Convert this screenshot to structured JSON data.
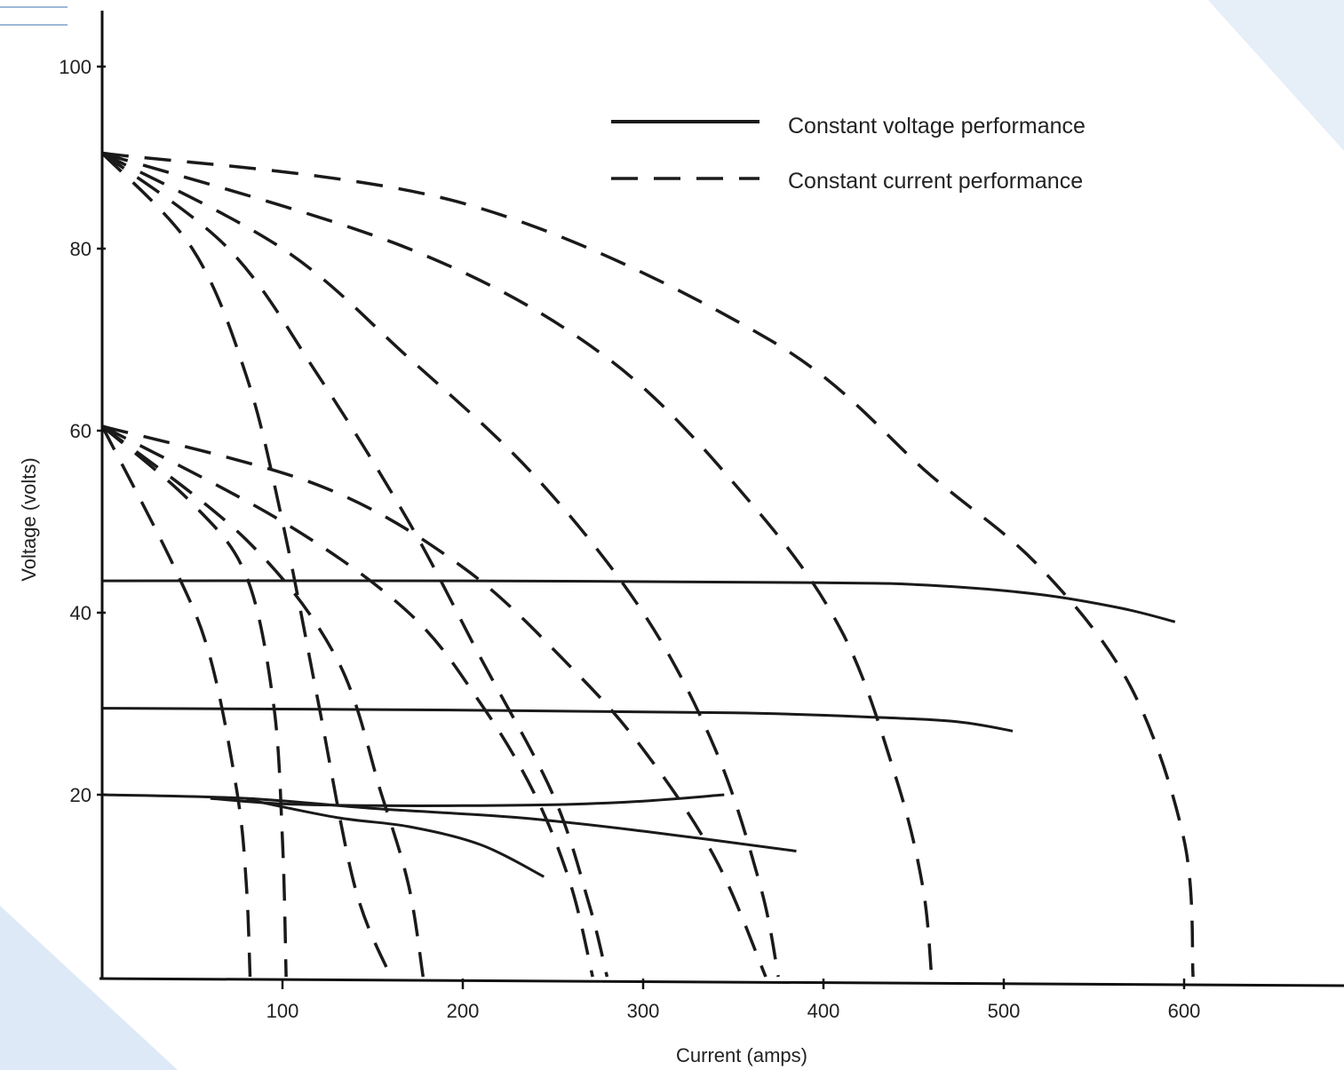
{
  "chart_data": {
    "type": "line",
    "title": "",
    "xlabel": "Current (amps)",
    "ylabel": "Voltage (volts)",
    "xlim": [
      0,
      680
    ],
    "ylim": [
      0,
      104
    ],
    "grid": false,
    "legend_position": "top-right",
    "x_ticks": [
      100,
      200,
      300,
      400,
      500,
      600
    ],
    "y_ticks": [
      20,
      40,
      60,
      80,
      100
    ],
    "x_tick_labels": [
      "100",
      "200",
      "300",
      "400",
      "500",
      "600"
    ],
    "y_tick_labels": [
      "20",
      "40",
      "60",
      "80",
      "100"
    ],
    "legend": [
      {
        "label": "Constant voltage performance",
        "style": "solid"
      },
      {
        "label": "Constant current performance",
        "style": "dashed"
      }
    ],
    "series": [
      {
        "style": "solid",
        "points": [
          [
            0,
            43.5
          ],
          [
            200,
            43.5
          ],
          [
            400,
            43.3
          ],
          [
            460,
            43.0
          ],
          [
            520,
            42.0
          ],
          [
            565,
            40.5
          ],
          [
            595,
            39.0
          ]
        ]
      },
      {
        "style": "solid",
        "points": [
          [
            0,
            29.5
          ],
          [
            200,
            29.3
          ],
          [
            350,
            29.0
          ],
          [
            430,
            28.5
          ],
          [
            475,
            28.0
          ],
          [
            505,
            27.0
          ]
        ]
      },
      {
        "style": "solid",
        "points": [
          [
            0,
            20.0
          ],
          [
            80,
            19.6
          ],
          [
            150,
            18.5
          ],
          [
            230,
            17.5
          ],
          [
            300,
            16.0
          ],
          [
            385,
            13.8
          ]
        ]
      },
      {
        "style": "solid",
        "points": [
          [
            60,
            19.6
          ],
          [
            100,
            19.0
          ],
          [
            150,
            18.8
          ],
          [
            200,
            18.8
          ],
          [
            250,
            18.9
          ],
          [
            300,
            19.3
          ],
          [
            345,
            20.0
          ]
        ]
      },
      {
        "style": "solid",
        "points": [
          [
            80,
            19.5
          ],
          [
            130,
            17.5
          ],
          [
            170,
            16.5
          ],
          [
            210,
            14.5
          ],
          [
            245,
            11.0
          ]
        ]
      },
      {
        "style": "dashed",
        "points": [
          [
            0,
            90.5
          ],
          [
            50,
            80
          ],
          [
            80,
            66
          ],
          [
            100,
            50
          ],
          [
            120,
            30
          ],
          [
            140,
            10
          ],
          [
            160,
            0
          ]
        ]
      },
      {
        "style": "dashed",
        "points": [
          [
            0,
            90.5
          ],
          [
            70,
            80
          ],
          [
            120,
            66
          ],
          [
            170,
            50
          ],
          [
            210,
            35
          ],
          [
            250,
            20
          ],
          [
            270,
            8
          ],
          [
            280,
            0
          ]
        ]
      },
      {
        "style": "dashed",
        "points": [
          [
            0,
            90.5
          ],
          [
            100,
            80
          ],
          [
            170,
            68
          ],
          [
            240,
            55
          ],
          [
            300,
            40
          ],
          [
            340,
            25
          ],
          [
            365,
            10
          ],
          [
            375,
            0
          ]
        ]
      },
      {
        "style": "dashed",
        "points": [
          [
            0,
            90.5
          ],
          [
            170,
            80
          ],
          [
            280,
            68
          ],
          [
            360,
            52
          ],
          [
            410,
            38
          ],
          [
            440,
            22
          ],
          [
            455,
            10
          ],
          [
            460,
            0
          ]
        ]
      },
      {
        "style": "dashed",
        "points": [
          [
            0,
            90.5
          ],
          [
            200,
            85
          ],
          [
            370,
            70
          ],
          [
            460,
            55
          ],
          [
            520,
            45
          ],
          [
            570,
            32
          ],
          [
            600,
            15
          ],
          [
            605,
            0
          ]
        ]
      },
      {
        "style": "dashed",
        "points": [
          [
            0,
            60.5
          ],
          [
            40,
            45
          ],
          [
            60,
            35
          ],
          [
            75,
            20
          ],
          [
            80,
            10
          ],
          [
            82,
            0
          ]
        ]
      },
      {
        "style": "dashed",
        "points": [
          [
            0,
            60.5
          ],
          [
            50,
            52
          ],
          [
            80,
            44
          ],
          [
            95,
            30
          ],
          [
            100,
            15
          ],
          [
            102,
            0
          ]
        ]
      },
      {
        "style": "dashed",
        "points": [
          [
            0,
            60.5
          ],
          [
            80,
            48
          ],
          [
            130,
            35
          ],
          [
            155,
            20
          ],
          [
            170,
            10
          ],
          [
            178,
            0
          ]
        ]
      },
      {
        "style": "dashed",
        "points": [
          [
            0,
            60.5
          ],
          [
            100,
            50
          ],
          [
            170,
            40
          ],
          [
            210,
            30
          ],
          [
            240,
            20
          ],
          [
            260,
            10
          ],
          [
            272,
            0
          ]
        ]
      },
      {
        "style": "dashed",
        "points": [
          [
            0,
            60.5
          ],
          [
            120,
            54
          ],
          [
            200,
            45
          ],
          [
            260,
            34
          ],
          [
            300,
            25
          ],
          [
            340,
            13
          ],
          [
            368,
            0
          ]
        ]
      }
    ]
  },
  "colors": {
    "ink": "#1a1a1a",
    "axis": "#111111",
    "decor": "#cfe0f2"
  }
}
